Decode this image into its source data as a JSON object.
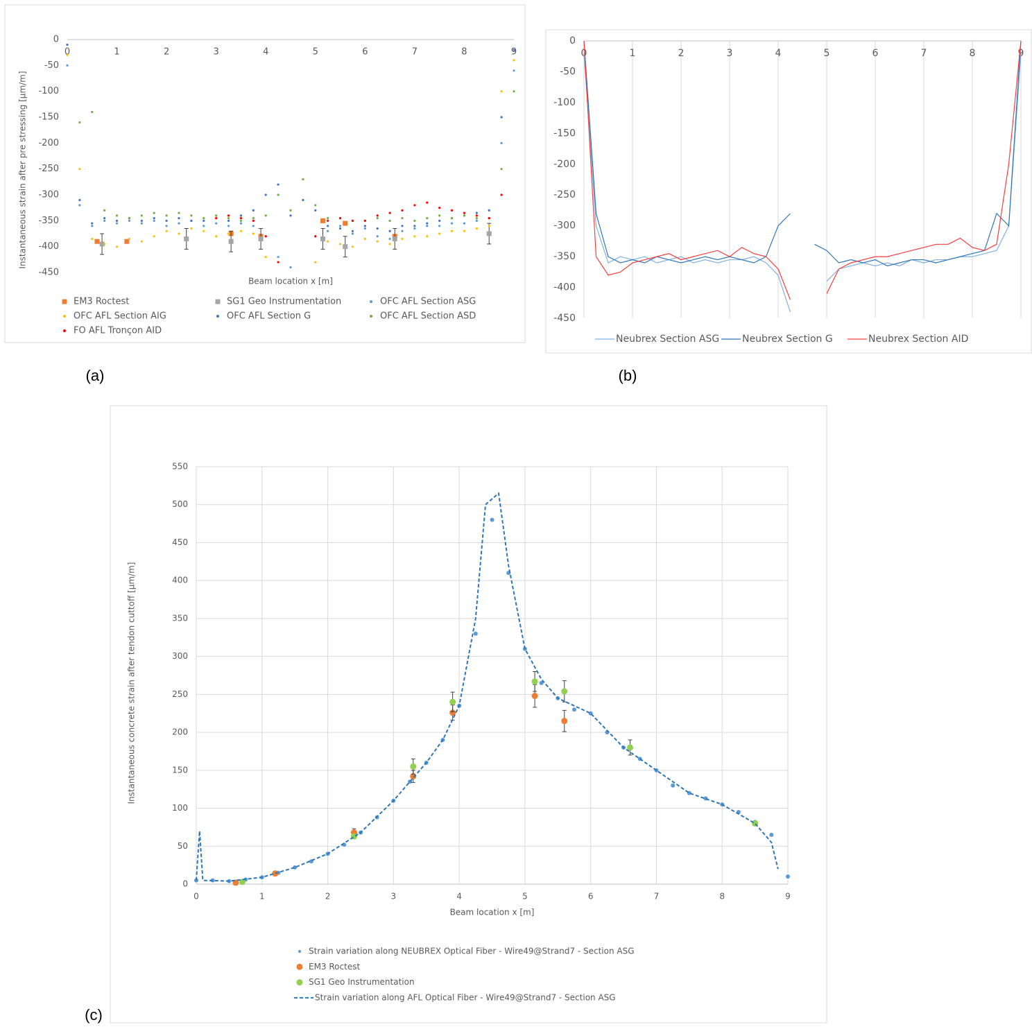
{
  "chart_data": [
    {
      "type": "scatter",
      "panel_label": "(a)",
      "x_label": "Beam location x [m]",
      "y_label": "Instantaneous strain after pre stressing [µm/m]",
      "xlim": [
        0,
        9
      ],
      "xticks": [
        0,
        1,
        2,
        3,
        4,
        5,
        6,
        7,
        8,
        9
      ],
      "ylim": [
        -450,
        0
      ],
      "yticks": [
        0,
        -50,
        -100,
        -150,
        -200,
        -250,
        -300,
        -350,
        -400,
        -450
      ],
      "grid": "none",
      "legend": "bottom",
      "legend_columns": 3,
      "x": [
        0,
        0.25,
        0.5,
        0.75,
        1,
        1.25,
        1.5,
        1.75,
        2,
        2.25,
        2.5,
        2.75,
        3,
        3.25,
        3.5,
        3.75,
        4,
        4.25,
        4.5,
        4.75,
        5,
        5.25,
        5.5,
        5.75,
        6,
        6.25,
        6.5,
        6.75,
        7,
        7.25,
        7.5,
        7.75,
        8,
        8.25,
        8.5,
        8.75,
        9
      ],
      "series": [
        {
          "name": "EM3 Roctest",
          "type": "scatter",
          "marker": "square",
          "color": "#ed7d31",
          "x": [
            0.6,
            1.2,
            3.3,
            3.9,
            5.15,
            5.6,
            6.6
          ],
          "values": [
            -390,
            -390,
            -375,
            -380,
            -350,
            -355,
            -380
          ]
        },
        {
          "name": "SG1 Geo Instrumentation",
          "type": "scatter",
          "marker": "square",
          "color": "#a5a5a5",
          "x": [
            0.7,
            2.4,
            3.3,
            3.9,
            5.15,
            5.6,
            6.6,
            8.5
          ],
          "values": [
            -395,
            -385,
            -390,
            -385,
            -385,
            -400,
            -385,
            -375
          ],
          "errors": [
            20,
            20,
            20,
            20,
            20,
            20,
            20,
            20
          ]
        },
        {
          "name": "OFC AFL Section ASG",
          "type": "scatter",
          "marker": "dot",
          "color": "#5b9bd5",
          "values": [
            -50,
            -320,
            -360,
            -350,
            -355,
            -350,
            -355,
            -350,
            -360,
            -355,
            -350,
            -360,
            -355,
            -360,
            -355,
            -360,
            -380,
            -420,
            -440,
            null,
            -380,
            -370,
            -360,
            -375,
            -365,
            -380,
            -385,
            -370,
            -365,
            -360,
            -360,
            -355,
            -355,
            -350,
            -345,
            -200,
            -60
          ]
        },
        {
          "name": "OFC AFL Section AIG",
          "type": "scatter",
          "marker": "dot",
          "color": "#ffc000",
          "values": [
            -30,
            -250,
            -385,
            -395,
            -400,
            -385,
            -390,
            -380,
            -370,
            -375,
            -365,
            -370,
            -380,
            -375,
            -370,
            -375,
            -420,
            null,
            null,
            null,
            -430,
            -390,
            -395,
            -400,
            -385,
            -390,
            -395,
            -385,
            -380,
            -380,
            -375,
            -370,
            -370,
            -365,
            -360,
            -100,
            -40
          ]
        },
        {
          "name": "OFC AFL Section G",
          "type": "scatter",
          "marker": "dot",
          "color": "#4472c4",
          "values": [
            -10,
            -310,
            -355,
            -345,
            -350,
            -345,
            -350,
            -345,
            -350,
            -345,
            -350,
            -350,
            -345,
            -350,
            -340,
            -330,
            -300,
            -280,
            -340,
            -310,
            -330,
            -360,
            -365,
            -370,
            -360,
            -365,
            -370,
            -360,
            -360,
            -355,
            -350,
            -345,
            -340,
            -335,
            -330,
            -150,
            -20
          ]
        },
        {
          "name": "OFC AFL Section ASD",
          "type": "scatter",
          "marker": "dot",
          "color": "#70ad47",
          "values": [
            null,
            -160,
            -140,
            -330,
            -340,
            -345,
            -340,
            -335,
            -340,
            -335,
            -340,
            -345,
            -340,
            -345,
            -350,
            -345,
            -340,
            -300,
            -330,
            -270,
            -320,
            -345,
            -345,
            -350,
            -350,
            -345,
            -350,
            -345,
            -350,
            -345,
            -340,
            -345,
            -340,
            -345,
            -345,
            -250,
            -100
          ]
        },
        {
          "name": "FO AFL Tronçon AID",
          "type": "scatter",
          "marker": "dot",
          "color": "#ff0000",
          "values": [
            null,
            null,
            null,
            null,
            null,
            null,
            null,
            null,
            null,
            null,
            null,
            null,
            -345,
            -340,
            -345,
            -350,
            -380,
            -430,
            null,
            null,
            -380,
            -350,
            -345,
            -350,
            -350,
            -340,
            -335,
            -330,
            -320,
            -315,
            -325,
            -330,
            -335,
            -340,
            -345,
            -300,
            null
          ]
        }
      ]
    },
    {
      "type": "line",
      "panel_label": "(b)",
      "xlim": [
        0,
        9
      ],
      "xticks": [
        0,
        1,
        2,
        3,
        4,
        5,
        6,
        7,
        8,
        9
      ],
      "ylim": [
        -450,
        0
      ],
      "yticks": [
        0,
        -50,
        -100,
        -150,
        -200,
        -250,
        -300,
        -350,
        -400,
        -450
      ],
      "grid": "x",
      "legend": "bottom",
      "legend_columns": 3,
      "x": [
        0,
        0.25,
        0.5,
        0.75,
        1,
        1.25,
        1.5,
        1.75,
        2,
        2.25,
        2.5,
        2.75,
        3,
        3.25,
        3.5,
        3.75,
        4,
        4.25,
        4.5,
        4.75,
        5,
        5.25,
        5.5,
        5.75,
        6,
        6.25,
        6.5,
        6.75,
        7,
        7.25,
        7.5,
        7.75,
        8,
        8.25,
        8.5,
        8.75,
        9
      ],
      "series": [
        {
          "name": "Neubrex Section ASG",
          "type": "line",
          "color": "#7fb0e0",
          "values": [
            -20,
            -300,
            -360,
            -350,
            -355,
            -350,
            -360,
            -355,
            -350,
            -360,
            -355,
            -360,
            -355,
            -355,
            -350,
            -360,
            -380,
            -440,
            null,
            null,
            -390,
            -370,
            -365,
            -360,
            -365,
            -360,
            -365,
            -355,
            -360,
            -355,
            -355,
            -350,
            -350,
            -345,
            -340,
            -300,
            -20
          ]
        },
        {
          "name": "Neubrex Section G",
          "type": "line",
          "color": "#2e75b6",
          "values": [
            0,
            -280,
            -350,
            -360,
            -355,
            -360,
            -350,
            -355,
            -360,
            -355,
            -350,
            -355,
            -350,
            -355,
            -360,
            -350,
            -300,
            -280,
            null,
            -330,
            -340,
            -360,
            -355,
            -360,
            -355,
            -365,
            -360,
            -355,
            -355,
            -360,
            -355,
            -350,
            -345,
            -340,
            -280,
            -300,
            0
          ]
        },
        {
          "name": "Neubrex Section AID",
          "type": "line",
          "color": "#ff3b3b",
          "values": [
            0,
            -350,
            -380,
            -375,
            -360,
            -355,
            -350,
            -345,
            -355,
            -350,
            -345,
            -340,
            -350,
            -335,
            -345,
            -350,
            -370,
            -420,
            null,
            null,
            -410,
            -370,
            -360,
            -355,
            -350,
            -350,
            -345,
            -340,
            -335,
            -330,
            -330,
            -320,
            -335,
            -340,
            -330,
            -200,
            0
          ]
        }
      ]
    },
    {
      "type": "scatter",
      "panel_label": "(c)",
      "x_label": "Beam location x [m]",
      "y_label": "Instantaneous concrete strain after tendon cuttoff [µm/m]",
      "xlim": [
        0,
        9
      ],
      "xticks": [
        0,
        1,
        2,
        3,
        4,
        5,
        6,
        7,
        8,
        9
      ],
      "ylim": [
        0,
        550
      ],
      "yticks": [
        0,
        50,
        100,
        150,
        200,
        250,
        300,
        350,
        400,
        450,
        500,
        550
      ],
      "grid": "both",
      "legend": "bottom",
      "legend_columns": 1,
      "x": [
        0,
        0.25,
        0.5,
        0.75,
        1,
        1.25,
        1.5,
        1.75,
        2,
        2.25,
        2.5,
        2.75,
        3,
        3.25,
        3.5,
        3.75,
        4,
        4.25,
        4.5,
        4.75,
        5,
        5.25,
        5.5,
        5.75,
        6,
        6.25,
        6.5,
        6.75,
        7,
        7.25,
        7.5,
        7.75,
        8,
        8.25,
        8.5,
        8.75,
        9
      ],
      "series": [
        {
          "name": "Strain variation along NEUBREX Optical Fiber - Wire49@Strand7 - Section ASG",
          "type": "scatter",
          "marker": "dot",
          "color": "#5b9bd5",
          "values": [
            5,
            5,
            4,
            6,
            9,
            15,
            22,
            30,
            40,
            52,
            68,
            88,
            110,
            135,
            160,
            190,
            235,
            330,
            480,
            410,
            310,
            265,
            245,
            230,
            225,
            200,
            180,
            165,
            150,
            130,
            120,
            113,
            105,
            95,
            82,
            65,
            10
          ]
        },
        {
          "name": "EM3 Roctest",
          "type": "scatter",
          "marker": "circle",
          "color": "#ed7d31",
          "x": [
            0.6,
            1.2,
            2.4,
            3.3,
            3.9,
            5.15,
            5.6
          ],
          "values": [
            2,
            14,
            68,
            142,
            226,
            248,
            215
          ],
          "errors": [
            3,
            3,
            5,
            8,
            10,
            15,
            14
          ]
        },
        {
          "name": "SG1 Geo Instrumentation",
          "type": "scatter",
          "marker": "circle",
          "color": "#92d050",
          "x": [
            0.7,
            2.4,
            3.3,
            3.9,
            5.15,
            5.6,
            6.6,
            8.5
          ],
          "values": [
            3,
            63,
            155,
            240,
            267,
            254,
            180,
            80
          ],
          "errors": [
            2,
            3,
            10,
            13,
            13,
            14,
            10,
            3
          ]
        },
        {
          "name": "Strain variation along AFL Optical Fiber - Wire49@Strand7 - Section ASG",
          "type": "line",
          "dash": true,
          "color": "#2e75b6",
          "x": [
            0,
            0.05,
            0.1,
            0.5,
            1,
            1.5,
            2,
            2.5,
            3,
            3.5,
            3.75,
            4,
            4.25,
            4.4,
            4.6,
            4.75,
            5,
            5.25,
            5.5,
            5.75,
            6,
            6.5,
            7,
            7.5,
            8,
            8.5,
            8.75,
            8.85
          ],
          "values": [
            5,
            70,
            5,
            4,
            9,
            22,
            40,
            68,
            110,
            160,
            190,
            235,
            350,
            500,
            515,
            420,
            310,
            270,
            245,
            235,
            225,
            180,
            150,
            120,
            105,
            80,
            55,
            20
          ]
        }
      ]
    }
  ]
}
